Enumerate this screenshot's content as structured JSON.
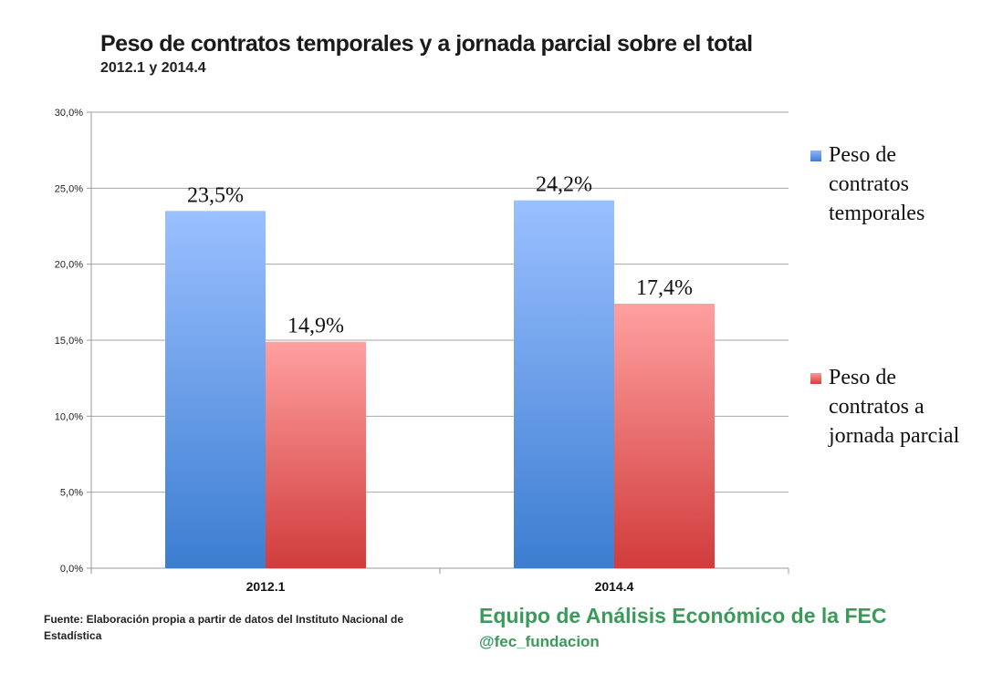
{
  "chart_data": {
    "type": "bar",
    "title": "Peso de contratos temporales y a jornada parcial sobre el total",
    "subtitle": "2012.1 y 2014.4",
    "categories": [
      "2012.1",
      "2014.4"
    ],
    "series": [
      {
        "name": "Peso de contratos temporales",
        "values": [
          23.5,
          24.2
        ],
        "labels": [
          "23,5%",
          "24,2%"
        ],
        "color_top": "#9ac0ff",
        "color_bottom": "#3c7dd1"
      },
      {
        "name": "Peso de contratos a jornada parcial",
        "values": [
          14.9,
          17.4
        ],
        "labels": [
          "14,9%",
          "17,4%"
        ],
        "color_top": "#ffa0a0",
        "color_bottom": "#d13c3c"
      }
    ],
    "yticks": [
      "0,0%",
      "5,0%",
      "10,0%",
      "15,0%",
      "20,0%",
      "25,0%",
      "30,0%"
    ],
    "ylim": [
      0,
      30
    ],
    "ystep": 5,
    "grid": true,
    "legend_position": "right",
    "xlabel": "",
    "ylabel": ""
  },
  "legend": {
    "item1": "Peso de contratos temporales",
    "item2": "Peso de contratos a jornada parcial"
  },
  "footer": {
    "source": "Fuente: Elaboración propia a partir de datos del Instituto Nacional de Estadística",
    "team": "Equipo de Análisis Económico de la FEC",
    "handle": "@fec_fundacion"
  }
}
